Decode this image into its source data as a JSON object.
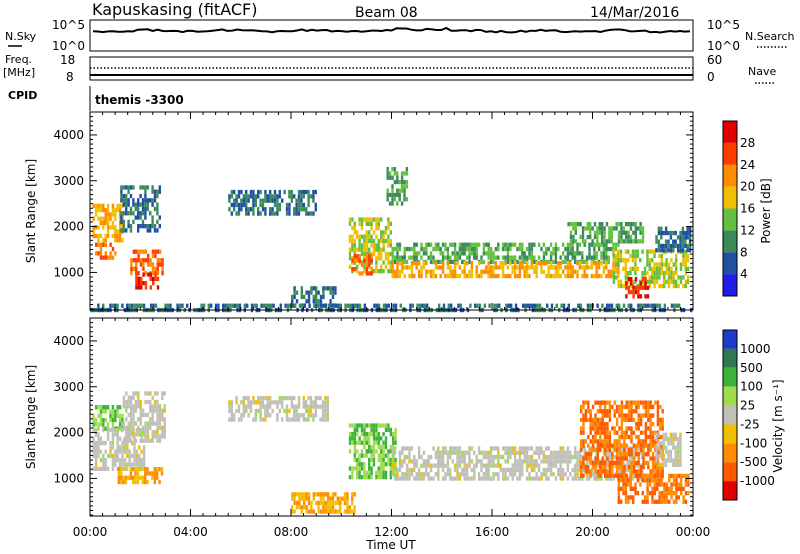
{
  "header": {
    "station": "Kapuskasing (fitACF)",
    "beam": "Beam 08",
    "date": "14/Mar/2016"
  },
  "noise_panel": {
    "left_label": "N.Sky",
    "right_label": "N.Search",
    "left_top_tick": "10^5",
    "left_bottom_tick": "10^0",
    "right_top_tick": "10^5",
    "right_bottom_tick": "10^0"
  },
  "freq_panel": {
    "left_label_line1": "Freq.",
    "left_label_line2": "[MHz]",
    "right_label": "Nave",
    "left_top_tick": "18",
    "left_bottom_tick": "8",
    "right_top_tick": "60",
    "right_bottom_tick": "0"
  },
  "cpid": {
    "label": "CPID",
    "value": "themis -3300"
  },
  "axes": {
    "ylabel": "Slant Range [km]",
    "xlabel": "Time UT",
    "yticks": [
      "1000",
      "2000",
      "3000",
      "4000"
    ],
    "xticks": [
      "00:00",
      "04:00",
      "08:00",
      "12:00",
      "16:00",
      "20:00",
      "00:00"
    ]
  },
  "power_scale": {
    "label": "Power [dB]",
    "ticks": [
      "4",
      "8",
      "12",
      "16",
      "20",
      "24",
      "28"
    ],
    "colors": [
      "#1e1ee6",
      "#2050a0",
      "#3a8a5a",
      "#64c040",
      "#f0c000",
      "#ff8c00",
      "#ff3c00",
      "#e00000"
    ]
  },
  "velocity_scale": {
    "label": "Velocity [m s⁻¹]",
    "ticks": [
      "1000",
      "500",
      "100",
      "25",
      "-25",
      "-100",
      "-500",
      "-1000"
    ],
    "colors": [
      "#1e3cc8",
      "#2f7850",
      "#3cb43c",
      "#a0dc50",
      "#c0c0b8",
      "#f0c000",
      "#ff8c00",
      "#ff5a00",
      "#e00000"
    ]
  },
  "chart_data": {
    "type": "heatmap",
    "xlabel": "Time UT",
    "ylabel": "Slant Range [km]",
    "xlim_hours": [
      0,
      24
    ],
    "ylim_km": [
      180,
      4500
    ],
    "power_regions": [
      {
        "t0": 0.1,
        "t1": 1.3,
        "r0": 1700,
        "r1": 2500,
        "level": 20
      },
      {
        "t0": 0.2,
        "t1": 1.0,
        "r0": 1350,
        "r1": 1650,
        "level": 24
      },
      {
        "t0": 1.2,
        "t1": 2.8,
        "r0": 1900,
        "r1": 2900,
        "level": 8
      },
      {
        "t0": 1.6,
        "t1": 2.9,
        "r0": 1000,
        "r1": 1500,
        "level": 24
      },
      {
        "t0": 1.8,
        "t1": 2.7,
        "r0": 700,
        "r1": 1000,
        "level": 28
      },
      {
        "t0": 5.5,
        "t1": 9.0,
        "r0": 2300,
        "r1": 2800,
        "level": 8
      },
      {
        "t0": 8.0,
        "t1": 9.8,
        "r0": 300,
        "r1": 700,
        "level": 8
      },
      {
        "t0": 10.3,
        "t1": 12.0,
        "r0": 1000,
        "r1": 2200,
        "level": 16
      },
      {
        "t0": 10.4,
        "t1": 11.2,
        "r0": 1000,
        "r1": 1400,
        "level": 24
      },
      {
        "t0": 11.8,
        "t1": 12.6,
        "r0": 2500,
        "r1": 3300,
        "level": 12
      },
      {
        "t0": 12.0,
        "t1": 21.0,
        "r0": 1250,
        "r1": 1650,
        "level": 12
      },
      {
        "t0": 12.0,
        "t1": 21.0,
        "r0": 950,
        "r1": 1250,
        "level": 20
      },
      {
        "t0": 19.0,
        "t1": 22.0,
        "r0": 1650,
        "r1": 2100,
        "level": 12
      },
      {
        "t0": 20.8,
        "t1": 23.8,
        "r0": 700,
        "r1": 1500,
        "level": 16
      },
      {
        "t0": 21.3,
        "t1": 22.2,
        "r0": 500,
        "r1": 900,
        "level": 28
      },
      {
        "t0": 22.5,
        "t1": 23.9,
        "r0": 1500,
        "r1": 2000,
        "level": 8
      },
      {
        "t0": 0.0,
        "t1": 23.9,
        "r0": 180,
        "r1": 320,
        "level": 8
      }
    ],
    "velocity_regions": [
      {
        "t0": 0.1,
        "t1": 1.3,
        "r0": 2100,
        "r1": 2600,
        "vel": 100
      },
      {
        "t0": 0.1,
        "t1": 2.2,
        "r0": 1250,
        "r1": 2100,
        "vel": 0
      },
      {
        "t0": 1.1,
        "t1": 2.9,
        "r0": 900,
        "r1": 1250,
        "vel": -100
      },
      {
        "t0": 1.3,
        "t1": 3.0,
        "r0": 1800,
        "r1": 2900,
        "vel": 0
      },
      {
        "t0": 5.5,
        "t1": 9.5,
        "r0": 2300,
        "r1": 2800,
        "vel": 0
      },
      {
        "t0": 8.0,
        "t1": 10.5,
        "r0": 250,
        "r1": 700,
        "vel": -100
      },
      {
        "t0": 10.3,
        "t1": 12.2,
        "r0": 1000,
        "r1": 2200,
        "vel": 100
      },
      {
        "t0": 12.0,
        "t1": 22.0,
        "r0": 950,
        "r1": 1700,
        "vel": 0
      },
      {
        "t0": 19.5,
        "t1": 22.8,
        "r0": 1100,
        "r1": 2700,
        "vel": -500
      },
      {
        "t0": 21.0,
        "t1": 23.8,
        "r0": 450,
        "r1": 1100,
        "vel": -500
      },
      {
        "t0": 22.5,
        "t1": 23.5,
        "r0": 1300,
        "r1": 2000,
        "vel": 0
      }
    ]
  }
}
